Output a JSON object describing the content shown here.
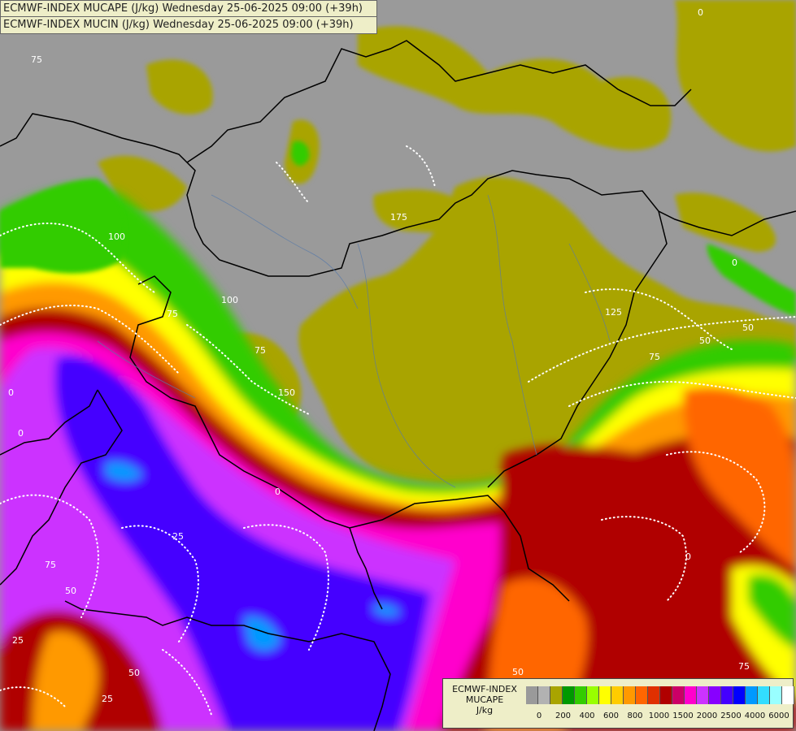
{
  "map": {
    "title_line1": "ECMWF-INDEX MUCAPE (J/kg) Wednesday 25-06-2025 09:00 (+39h)",
    "title_line2": "ECMWF-INDEX MUCIN (J/kg) Wednesday 25-06-2025 09:00 (+39h)",
    "contour_labels": [
      "100",
      "100",
      "75",
      "75",
      "75",
      "150",
      "175",
      "125",
      "75",
      "50",
      "50",
      "50",
      "0",
      "0",
      "0",
      "0",
      "0",
      "75",
      "25",
      "25",
      "25",
      "50",
      "50",
      "75",
      "0"
    ]
  },
  "legend": {
    "line1": "ECMWF-INDEX",
    "line2": "MUCAPE",
    "line3": "J/kg",
    "colors": [
      "#9a9a9a",
      "#b2b2b2",
      "#a9a400",
      "#009900",
      "#33cc00",
      "#99ff00",
      "#ffff00",
      "#ffcc00",
      "#ff9900",
      "#ff6600",
      "#e03000",
      "#b00000",
      "#cc0066",
      "#ff00cc",
      "#cc33ff",
      "#8800ff",
      "#4400ff",
      "#0000ff",
      "#0099ff",
      "#33ddff",
      "#99ffff",
      "#ffffff"
    ],
    "tick_labels": [
      "0",
      "200",
      "400",
      "600",
      "800",
      "1000",
      "1500",
      "2000",
      "2500",
      "4000",
      "6000"
    ]
  }
}
